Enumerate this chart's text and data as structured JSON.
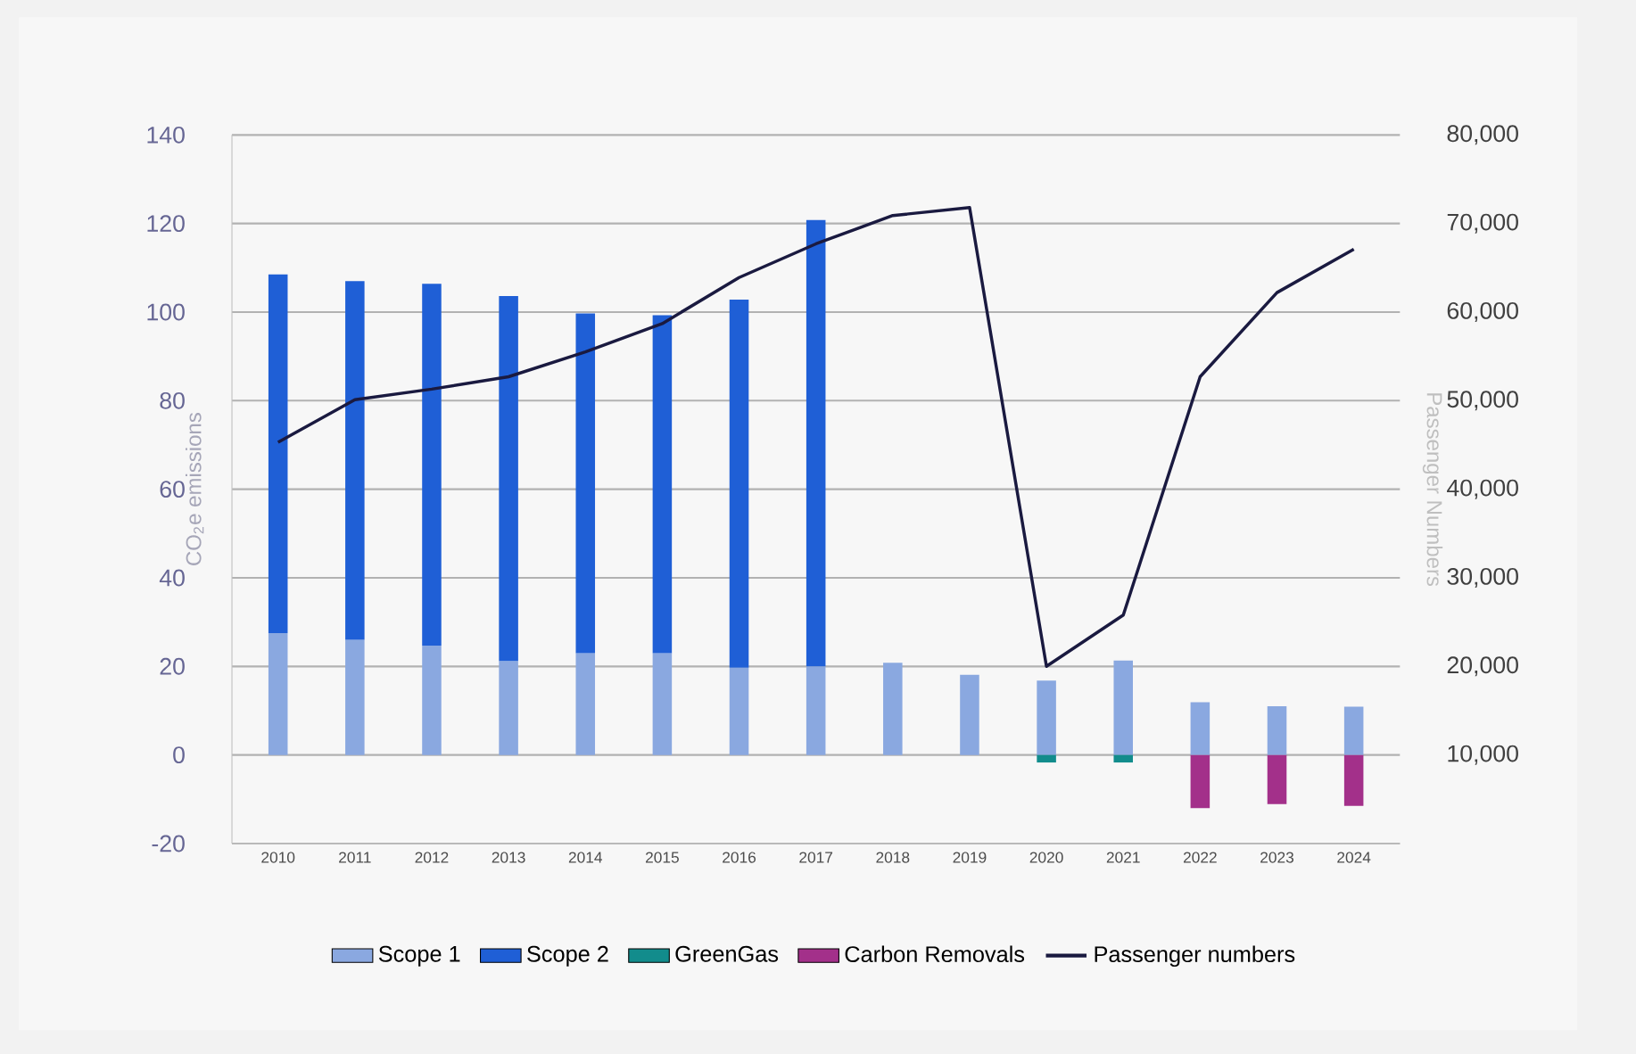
{
  "chart_data": {
    "type": "bar",
    "stacked": true,
    "ylabel": "CO$_{2}$e emissions",
    "y2label": "Passenger Numbers",
    "categories": [
      "2010",
      "2011",
      "2012",
      "2013",
      "2014",
      "2015",
      "2016",
      "2017",
      "2018",
      "2019",
      "2020",
      "2021",
      "2022",
      "2023",
      "2024"
    ],
    "series": [
      {
        "name": "Scope 1",
        "color": "#8aa8e0",
        "values": [
          27.5,
          26,
          24.7,
          21.2,
          23,
          23,
          19.7,
          20,
          20.8,
          18.1,
          16.8,
          21.3,
          11.9,
          11,
          10.9
        ]
      },
      {
        "name": "Scope 2",
        "color": "#1f5fd6",
        "values": [
          81,
          81,
          81.7,
          82.4,
          76.7,
          76.3,
          83.1,
          100.8,
          null,
          null,
          null,
          null,
          null,
          null,
          null
        ]
      },
      {
        "name": "GreenGas",
        "color": "#128c8c",
        "values": [
          null,
          null,
          null,
          null,
          null,
          null,
          null,
          null,
          null,
          null,
          -1.7,
          -1.7,
          null,
          null,
          null
        ]
      },
      {
        "name": "Carbon Removals",
        "color": "#a3308a",
        "values": [
          null,
          null,
          null,
          null,
          null,
          null,
          null,
          null,
          null,
          null,
          null,
          null,
          -12,
          -11.1,
          -11.5
        ]
      },
      {
        "name": "Passenger numbers",
        "type": "line",
        "axis": "y2",
        "color": "#1a1a40",
        "values": [
          45300,
          50100,
          51300,
          52700,
          55500,
          58700,
          63900,
          67700,
          70900,
          71800,
          20000,
          25800,
          52700,
          62200,
          67100
        ]
      }
    ],
    "ylim": [
      -20,
      140
    ],
    "yticks": [
      -20,
      0,
      20,
      40,
      60,
      80,
      100,
      120,
      140
    ],
    "y2lim": [
      0,
      80000
    ],
    "y2ticks": [
      {
        "value": 10000,
        "label": "10,000"
      },
      {
        "value": 20000,
        "label": "20,000"
      },
      {
        "value": 30000,
        "label": "30,000"
      },
      {
        "value": 40000,
        "label": "40,000"
      },
      {
        "value": 50000,
        "label": "50,000"
      },
      {
        "value": 60000,
        "label": "60,000"
      },
      {
        "value": 70000,
        "label": "70,000"
      },
      {
        "value": 80000,
        "label": "80,000"
      }
    ],
    "grid": "y",
    "legend": "bottom"
  }
}
